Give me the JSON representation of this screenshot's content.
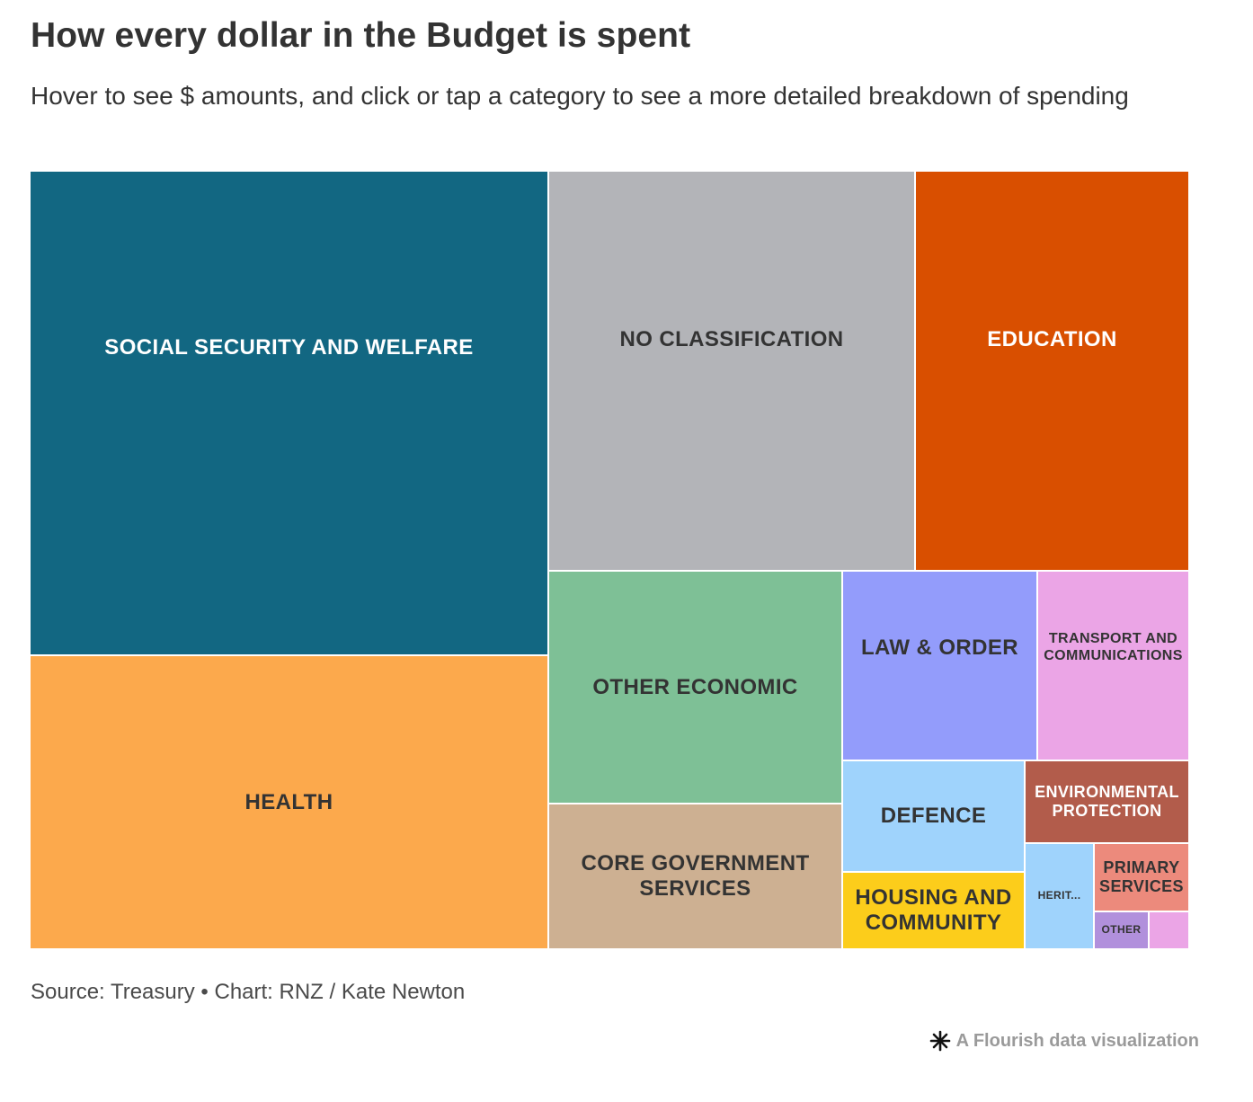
{
  "title": "How every dollar in the Budget is spent",
  "subtitle": "Hover to see $ amounts, and click or tap a category to see a more detailed breakdown of spending",
  "source": "Source: Treasury • Chart: RNZ / Kate Newton",
  "credit": "A Flourish data visualization",
  "chart_data": {
    "type": "treemap",
    "note": "Relative area share of each category as displayed (no $ values printed)",
    "categories": [
      {
        "label": "SOCIAL SECURITY AND WELFARE",
        "share": 0.277,
        "color": "#126782",
        "text_color": "#ffffff"
      },
      {
        "label": "HEALTH",
        "share": 0.168,
        "color": "#fca94c",
        "text_color": "#333333"
      },
      {
        "label": "NO CLASSIFICATION",
        "share": 0.162,
        "color": "#b3b4b8",
        "text_color": "#333333"
      },
      {
        "label": "EDUCATION",
        "share": 0.121,
        "color": "#d94f00",
        "text_color": "#ffffff"
      },
      {
        "label": "OTHER ECONOMIC",
        "share": 0.075,
        "color": "#7ec096",
        "text_color": "#333333"
      },
      {
        "label": "CORE GOVERNMENT SERVICES",
        "share": 0.047,
        "color": "#cdb092",
        "text_color": "#333333"
      },
      {
        "label": "LAW & ORDER",
        "share": 0.041,
        "color": "#939cfb",
        "text_color": "#333333"
      },
      {
        "label": "TRANSPORT AND COMMUNICATIONS",
        "share": 0.032,
        "color": "#eba5e6",
        "text_color": "#333333"
      },
      {
        "label": "DEFENCE",
        "share": 0.021,
        "color": "#9fd3fc",
        "text_color": "#333333"
      },
      {
        "label": "HOUSING AND COMMUNITY",
        "share": 0.016,
        "color": "#fccd1b",
        "text_color": "#333333"
      },
      {
        "label": "ENVIRONMENTAL PROTECTION",
        "share": 0.015,
        "color": "#b25c4b",
        "text_color": "#ffffff"
      },
      {
        "label": "HERIT...",
        "share": 0.01,
        "color": "#9fd3fc",
        "text_color": "#333333"
      },
      {
        "label": "PRIMARY SERVICES",
        "share": 0.008,
        "color": "#ec8a7c",
        "text_color": "#333333"
      },
      {
        "label": "OTHER",
        "share": 0.005,
        "color": "#b190dc",
        "text_color": "#333333"
      },
      {
        "label": "",
        "share": 0.003,
        "color": "#eba5e6",
        "text_color": "#333333"
      }
    ]
  }
}
